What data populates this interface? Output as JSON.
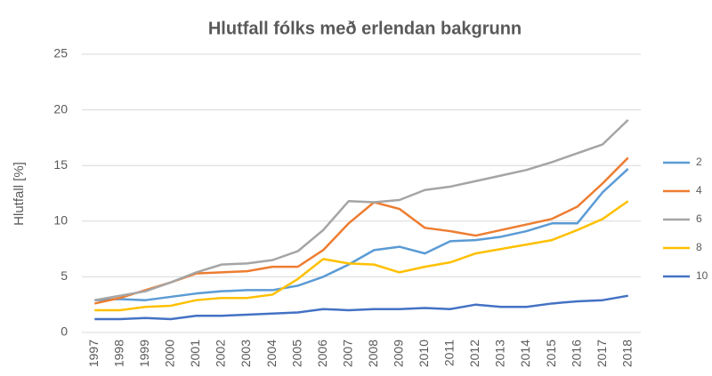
{
  "chart_data": {
    "type": "line",
    "title": "Hlutfall fólks með erlendan bakgrunn",
    "y_label": "Hlutfall [%]",
    "categories": [
      "1997",
      "1998",
      "1999",
      "2000",
      "2001",
      "2002",
      "2003",
      "2004",
      "2005",
      "2006",
      "2007",
      "2008",
      "2009",
      "2010",
      "2011",
      "2012",
      "2013",
      "2014",
      "2015",
      "2016",
      "2017",
      "2018"
    ],
    "series": [
      {
        "name": "2",
        "color": "#5b9bd5",
        "values": [
          2.9,
          3.0,
          2.9,
          3.2,
          3.5,
          3.7,
          3.8,
          3.8,
          4.2,
          5.0,
          6.1,
          7.4,
          7.7,
          7.1,
          8.2,
          8.3,
          8.6,
          9.1,
          9.8,
          9.8,
          12.6,
          14.7
        ]
      },
      {
        "name": "4",
        "color": "#ed7d31",
        "values": [
          2.6,
          3.1,
          3.8,
          4.5,
          5.3,
          5.4,
          5.5,
          5.9,
          5.9,
          7.4,
          9.8,
          11.7,
          11.1,
          9.4,
          9.1,
          8.7,
          9.2,
          9.7,
          10.2,
          11.3,
          13.4,
          15.7
        ]
      },
      {
        "name": "6",
        "color": "#a5a5a5",
        "values": [
          2.9,
          3.3,
          3.7,
          4.5,
          5.4,
          6.1,
          6.2,
          6.5,
          7.3,
          9.2,
          11.8,
          11.7,
          11.9,
          12.8,
          13.1,
          13.6,
          14.1,
          14.6,
          15.3,
          16.1,
          16.9,
          19.1
        ]
      },
      {
        "name": "8",
        "color": "#ffc000",
        "values": [
          2.0,
          2.0,
          2.3,
          2.4,
          2.9,
          3.1,
          3.1,
          3.4,
          4.8,
          6.6,
          6.2,
          6.1,
          5.4,
          5.9,
          6.3,
          7.1,
          7.5,
          7.9,
          8.3,
          9.2,
          10.2,
          11.8
        ]
      },
      {
        "name": "10",
        "color": "#4472c4",
        "values": [
          1.2,
          1.2,
          1.3,
          1.2,
          1.5,
          1.5,
          1.6,
          1.7,
          1.8,
          2.1,
          2.0,
          2.1,
          2.1,
          2.2,
          2.1,
          2.5,
          2.3,
          2.3,
          2.6,
          2.8,
          2.9,
          3.3
        ]
      }
    ],
    "ylim": [
      0,
      25
    ],
    "yticks": [
      0,
      5,
      10,
      15,
      20,
      25
    ],
    "grid": true,
    "legend": "right"
  }
}
